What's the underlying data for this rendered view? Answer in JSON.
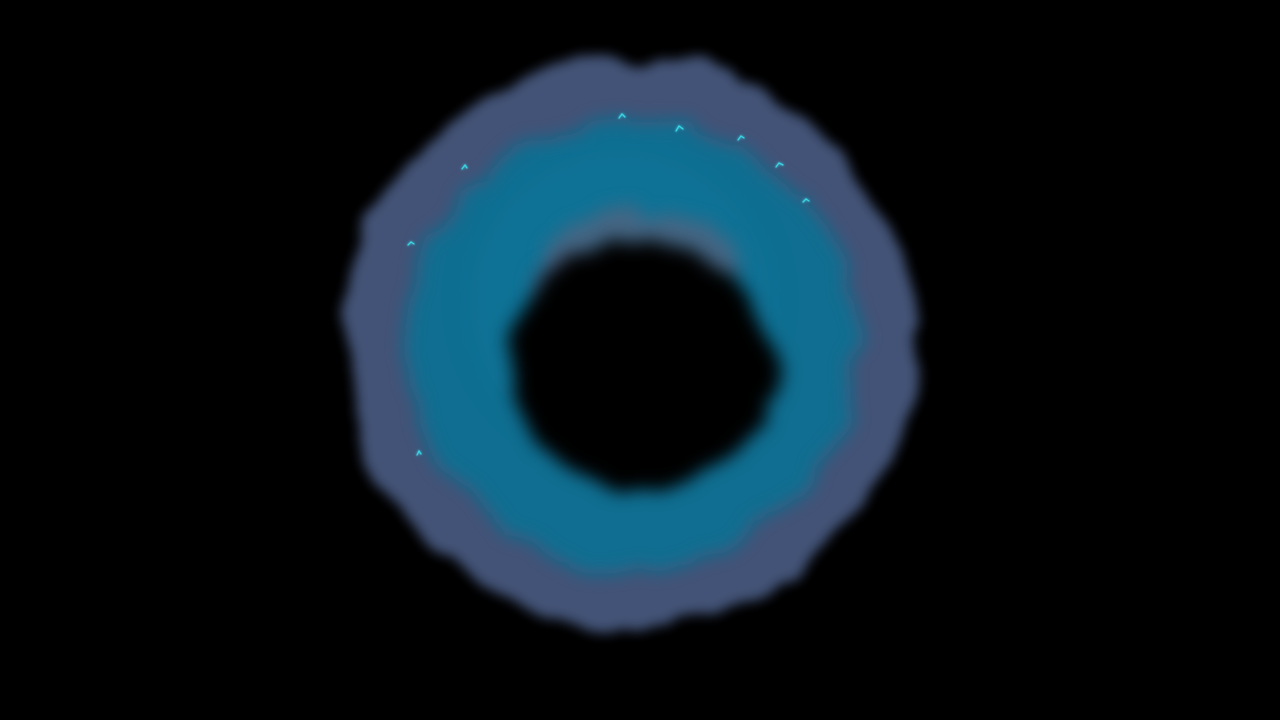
{
  "scene": {
    "subject": "smoke-ring-portal",
    "colors": {
      "background": "#000000",
      "outer_haze": "#4a5b80",
      "inner_glow": "#0a6f93",
      "core": "#000000",
      "spark": "#3ad6e6"
    }
  }
}
